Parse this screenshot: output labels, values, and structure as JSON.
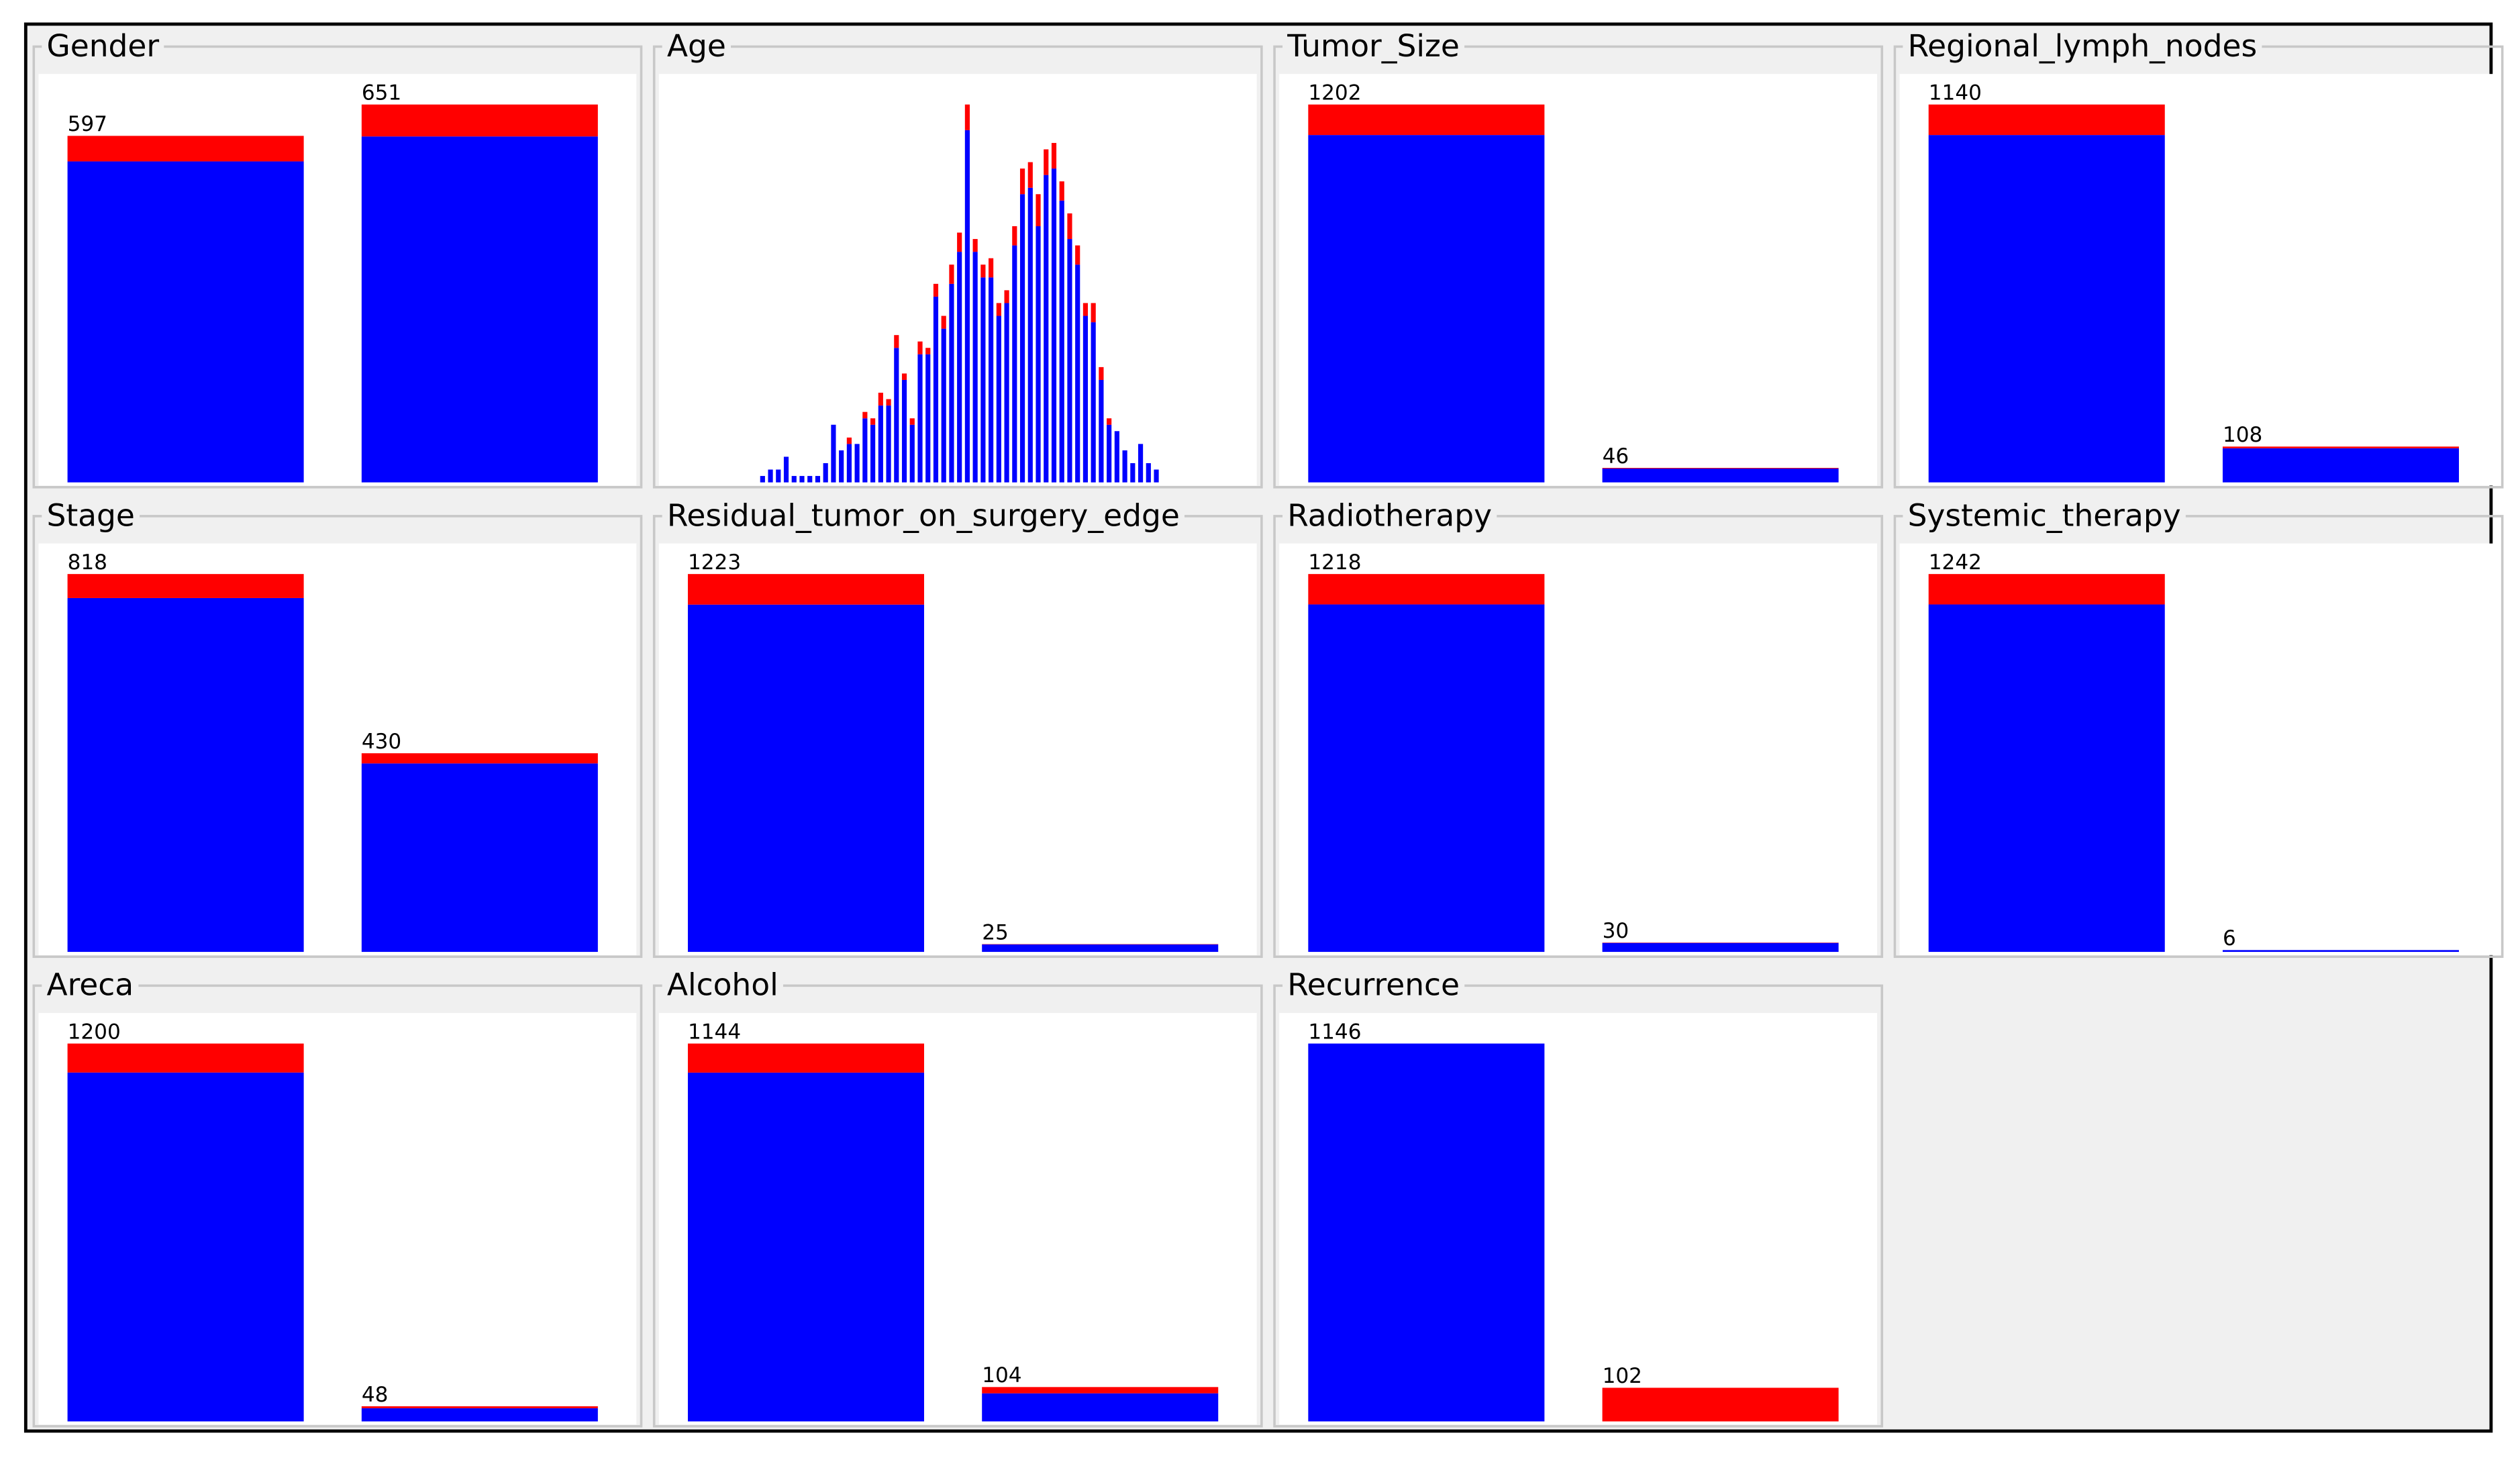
{
  "chart_data": [
    {
      "type": "bar",
      "title": "Gender",
      "totals": [
        597,
        651
      ],
      "series": [
        {
          "color": "#0000ff",
          "values": [
            553,
            596
          ]
        },
        {
          "color": "#ff0000",
          "values": [
            44,
            55
          ]
        }
      ]
    },
    {
      "type": "bar",
      "title": "Age",
      "series": [
        {
          "color": "#0000ff",
          "values": [
            1,
            2,
            2,
            4,
            1,
            1,
            1,
            1,
            3,
            9,
            5,
            6,
            6,
            10,
            9,
            12,
            12,
            21,
            16,
            9,
            20,
            20,
            29,
            24,
            31,
            36,
            55,
            36,
            32,
            32,
            26,
            28,
            37,
            45,
            46,
            40,
            48,
            49,
            44,
            38,
            34,
            26,
            25,
            16,
            9,
            8,
            5,
            3,
            6,
            3,
            2
          ]
        },
        {
          "color": "#ff0000",
          "values": [
            0,
            0,
            0,
            0,
            0,
            0,
            0,
            0,
            0,
            0,
            0,
            1,
            0,
            1,
            1,
            2,
            1,
            2,
            1,
            1,
            2,
            1,
            2,
            2,
            3,
            3,
            4,
            2,
            2,
            3,
            2,
            2,
            3,
            4,
            4,
            5,
            4,
            4,
            3,
            4,
            3,
            2,
            3,
            2,
            1,
            0,
            0,
            0,
            0,
            0,
            0
          ]
        }
      ]
    },
    {
      "type": "bar",
      "title": "Tumor_Size",
      "totals": [
        1202,
        46
      ],
      "series": [
        {
          "color": "#0000ff",
          "values": [
            1105,
            44
          ]
        },
        {
          "color": "#ff0000",
          "values": [
            97,
            2
          ]
        }
      ]
    },
    {
      "type": "bar",
      "title": "Regional_lymph_nodes",
      "totals": [
        1140,
        108
      ],
      "series": [
        {
          "color": "#0000ff",
          "values": [
            1048,
            103
          ]
        },
        {
          "color": "#ff0000",
          "values": [
            92,
            5
          ]
        }
      ]
    },
    {
      "type": "bar",
      "title": "Stage",
      "totals": [
        818,
        430
      ],
      "series": [
        {
          "color": "#0000ff",
          "values": [
            766,
            408
          ]
        },
        {
          "color": "#ff0000",
          "values": [
            52,
            22
          ]
        }
      ]
    },
    {
      "type": "bar",
      "title": "Residual_tumor_on_surgery_edge",
      "totals": [
        1223,
        25
      ],
      "series": [
        {
          "color": "#0000ff",
          "values": [
            1124,
            24
          ]
        },
        {
          "color": "#ff0000",
          "values": [
            99,
            1
          ]
        }
      ]
    },
    {
      "type": "bar",
      "title": "Radiotherapy",
      "totals": [
        1218,
        30
      ],
      "series": [
        {
          "color": "#0000ff",
          "values": [
            1120,
            29
          ]
        },
        {
          "color": "#ff0000",
          "values": [
            98,
            1
          ]
        }
      ]
    },
    {
      "type": "bar",
      "title": "Systemic_therapy",
      "totals": [
        1242,
        6
      ],
      "series": [
        {
          "color": "#0000ff",
          "values": [
            1142,
            6
          ]
        },
        {
          "color": "#ff0000",
          "values": [
            100,
            0
          ]
        }
      ]
    },
    {
      "type": "bar",
      "title": "Areca",
      "totals": [
        1200,
        48
      ],
      "series": [
        {
          "color": "#0000ff",
          "values": [
            1108,
            42
          ]
        },
        {
          "color": "#ff0000",
          "values": [
            92,
            6
          ]
        }
      ]
    },
    {
      "type": "bar",
      "title": "Alcohol",
      "totals": [
        1144,
        104
      ],
      "series": [
        {
          "color": "#0000ff",
          "values": [
            1056,
            85
          ]
        },
        {
          "color": "#ff0000",
          "values": [
            88,
            19
          ]
        }
      ]
    },
    {
      "type": "bar",
      "title": "Recurrence",
      "totals": [
        1146,
        102
      ],
      "series": [
        {
          "color": "#0000ff",
          "values": [
            1146,
            0
          ]
        },
        {
          "color": "#ff0000",
          "values": [
            0,
            102
          ]
        }
      ]
    }
  ]
}
